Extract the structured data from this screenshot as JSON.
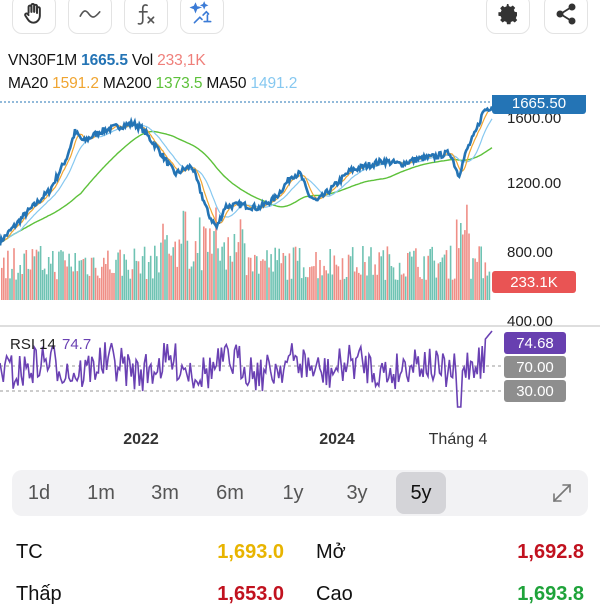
{
  "toolbar": {
    "buttons": [
      {
        "name": "hand-tool-icon"
      },
      {
        "name": "indicator-curve-icon"
      },
      {
        "name": "function-icon"
      },
      {
        "name": "magic-wand-icon"
      },
      {
        "name": "settings-icon"
      },
      {
        "name": "share-icon"
      }
    ]
  },
  "info": {
    "symbol": "VN30F1M",
    "last": "1665.5",
    "vol_label": "Vol",
    "vol_value": "233,1K",
    "ma20_label": "MA20",
    "ma20_value": "1591.2",
    "ma200_label": "MA200",
    "ma200_value": "1373.5",
    "ma50_label": "MA50",
    "ma50_value": "1491.2"
  },
  "colors": {
    "price": "#2474b5",
    "ma20": "#f0a531",
    "ma200": "#5dc13a",
    "ma50": "#86c8f0",
    "vol_up": "#6fc3b3",
    "vol_down": "#ef8e86",
    "rsi": "#6a41b3",
    "vol_badge": "#e95454",
    "rsi_badge": "#6840b0",
    "level_badge": "#8e8e8e"
  },
  "chart_data": {
    "type": "line",
    "x_tick_labels": [
      "2022",
      "2024",
      "Tháng 4"
    ],
    "y_tick_labels": [
      "1600.00",
      "1200.00",
      "800.00",
      "400.00"
    ],
    "price_badge": "1665.50",
    "volume_badge": "233.1K",
    "rsi_label": "RSI 14",
    "rsi_value_label": "74.7",
    "rsi_badge": "74.68",
    "rsi_levels": [
      "70.00",
      "30.00"
    ],
    "price_series": [
      [
        "2020-09",
        830
      ],
      [
        "2020-12",
        1000
      ],
      [
        "2021-03",
        1150
      ],
      [
        "2021-05",
        1350
      ],
      [
        "2021-06",
        1510
      ],
      [
        "2021-07",
        1450
      ],
      [
        "2021-09",
        1510
      ],
      [
        "2021-11",
        1540
      ],
      [
        "2022-01",
        1560
      ],
      [
        "2022-02",
        1530
      ],
      [
        "2022-04",
        1400
      ],
      [
        "2022-06",
        1250
      ],
      [
        "2022-08",
        1300
      ],
      [
        "2022-10",
        1000
      ],
      [
        "2022-11",
        920
      ],
      [
        "2022-12",
        1050
      ],
      [
        "2023-02",
        1060
      ],
      [
        "2023-04",
        1040
      ],
      [
        "2023-06",
        1100
      ],
      [
        "2023-08",
        1240
      ],
      [
        "2023-09",
        1250
      ],
      [
        "2023-10",
        1120
      ],
      [
        "2023-11",
        1080
      ],
      [
        "2024-01",
        1170
      ],
      [
        "2024-03",
        1270
      ],
      [
        "2024-05",
        1300
      ],
      [
        "2024-07",
        1330
      ],
      [
        "2024-09",
        1310
      ],
      [
        "2024-11",
        1340
      ],
      [
        "2025-01",
        1355
      ],
      [
        "2025-03",
        1380
      ],
      [
        "2025-04",
        1240
      ],
      [
        "2025-05",
        1400
      ],
      [
        "2025-06",
        1500
      ],
      [
        "2025-07",
        1640
      ],
      [
        "2025-08",
        1665.5
      ]
    ]
  },
  "periods": {
    "items": [
      "1d",
      "1m",
      "3m",
      "6m",
      "1y",
      "3y",
      "5y"
    ],
    "active": "5y"
  },
  "stats": {
    "tc_label": "TC",
    "tc_value": "1,693.0",
    "open_label": "Mở",
    "open_value": "1,692.8",
    "low_label": "Thấp",
    "low_value": "1,653.0",
    "high_label": "Cao",
    "high_value": "1,693.8"
  }
}
